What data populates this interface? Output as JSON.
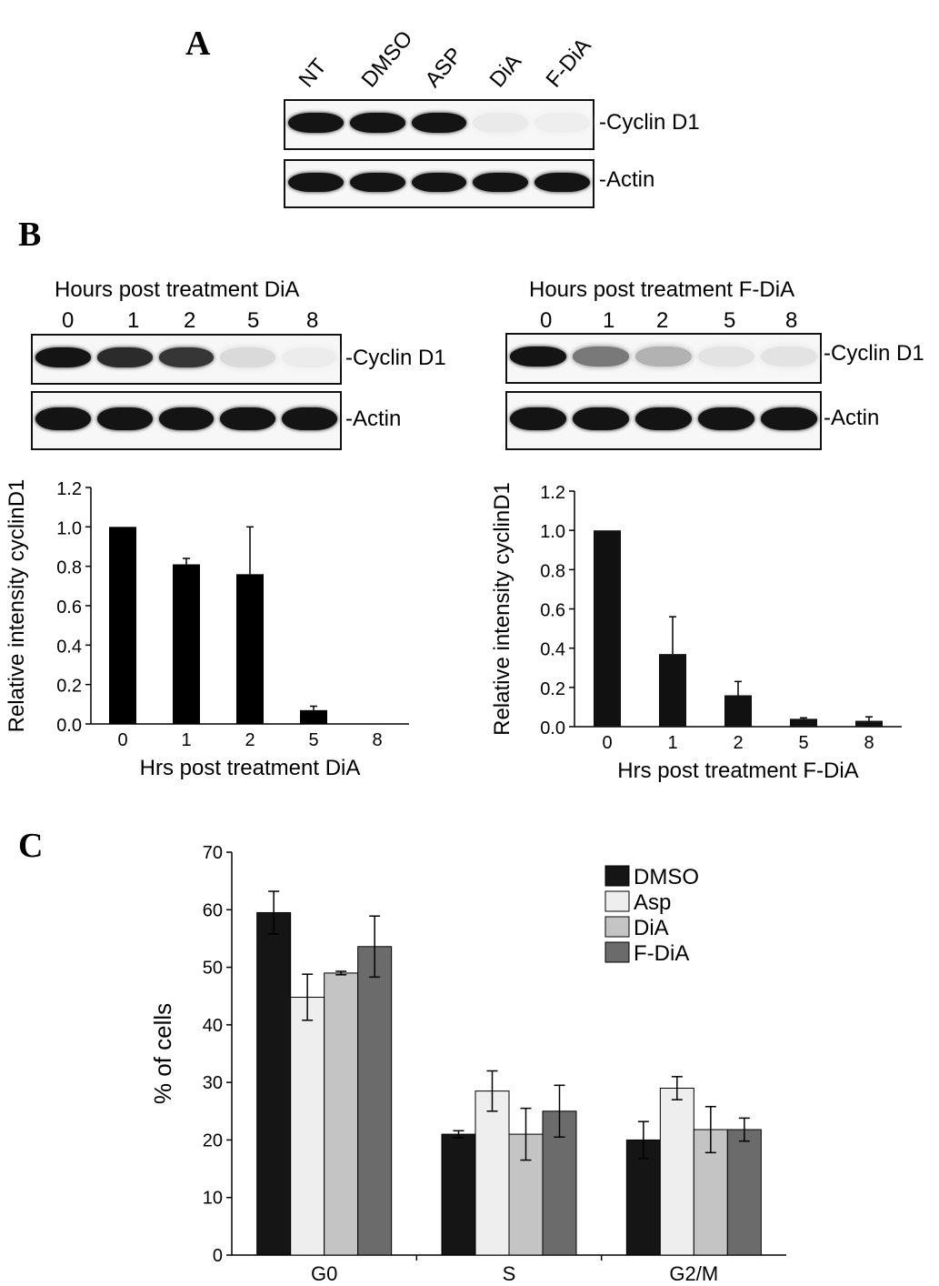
{
  "panels": {
    "a": "A",
    "b": "B",
    "c": "C"
  },
  "panel_a": {
    "lanes": [
      "NT",
      "DMSO",
      "ASP",
      "DiA",
      "F-DiA"
    ],
    "blot_labels": [
      "-Cyclin D1",
      "-Actin"
    ],
    "cyclin_intensity": [
      1,
      1,
      1,
      0.05,
      0.03
    ],
    "actin_intensity": [
      1,
      1,
      1,
      1,
      1
    ]
  },
  "panel_b_left": {
    "header": "Hours post treatment DiA",
    "times": [
      "0",
      "1",
      "2",
      "5",
      "8"
    ],
    "blot_labels": [
      "-Cyclin D1",
      "-Actin"
    ],
    "cyclin_intensity": [
      1,
      0.9,
      0.85,
      0.12,
      0.04
    ],
    "actin_intensity": [
      1,
      1,
      1,
      1,
      1
    ]
  },
  "panel_b_right": {
    "header": "Hours post treatment F-DiA",
    "times": [
      "0",
      "1",
      "2",
      "5",
      "8"
    ],
    "blot_labels": [
      "-Cyclin D1",
      "-Actin"
    ],
    "cyclin_intensity": [
      1,
      0.55,
      0.3,
      0.08,
      0.08
    ],
    "actin_intensity": [
      1,
      1,
      1,
      1,
      1
    ]
  },
  "chart_data": [
    {
      "type": "bar",
      "categories": [
        "0",
        "1",
        "2",
        "5",
        "8"
      ],
      "values": [
        1.0,
        0.81,
        0.76,
        0.07,
        0.0
      ],
      "errors": [
        0,
        0.03,
        0.24,
        0.02,
        0.0
      ],
      "xlabel": "Hrs post treatment DiA",
      "ylabel": "Relative intensity cyclinD1",
      "ylim": [
        0,
        1.2
      ],
      "yticks": [
        "0.0",
        "0.2",
        "0.4",
        "0.6",
        "0.8",
        "1.0",
        "1.2"
      ],
      "color": "#000000"
    },
    {
      "type": "bar",
      "categories": [
        "0",
        "1",
        "2",
        "5",
        "8"
      ],
      "values": [
        1.0,
        0.37,
        0.16,
        0.04,
        0.03
      ],
      "errors": [
        0,
        0.19,
        0.07,
        0.005,
        0.02
      ],
      "xlabel": "Hrs post treatment F-DiA",
      "ylabel": "Relative intensity cyclinD1",
      "ylim": [
        0,
        1.2
      ],
      "yticks": [
        "0.0",
        "0.2",
        "0.4",
        "0.6",
        "0.8",
        "1.0",
        "1.2"
      ],
      "color": "#111111"
    },
    {
      "type": "bar",
      "categories": [
        "G0",
        "S",
        "G2/M"
      ],
      "series": [
        {
          "name": "DMSO",
          "values": [
            59.5,
            21,
            20
          ],
          "errors": [
            3.7,
            0.6,
            3.2
          ],
          "color": "#151515"
        },
        {
          "name": "Asp",
          "values": [
            44.8,
            28.5,
            29
          ],
          "errors": [
            4.0,
            3.5,
            2.0
          ],
          "color": "#eeeeee"
        },
        {
          "name": "DiA",
          "values": [
            49,
            21,
            21.8
          ],
          "errors": [
            0.3,
            4.5,
            4.0
          ],
          "color": "#c4c4c4"
        },
        {
          "name": "F-DiA",
          "values": [
            53.6,
            25,
            21.8
          ],
          "errors": [
            5.3,
            4.5,
            2.0
          ],
          "color": "#6b6b6b"
        }
      ],
      "ylabel": "% of cells",
      "ylim": [
        0,
        70
      ],
      "yticks": [
        "0",
        "10",
        "20",
        "30",
        "40",
        "50",
        "60",
        "70"
      ],
      "legend_position": "top-right"
    }
  ]
}
